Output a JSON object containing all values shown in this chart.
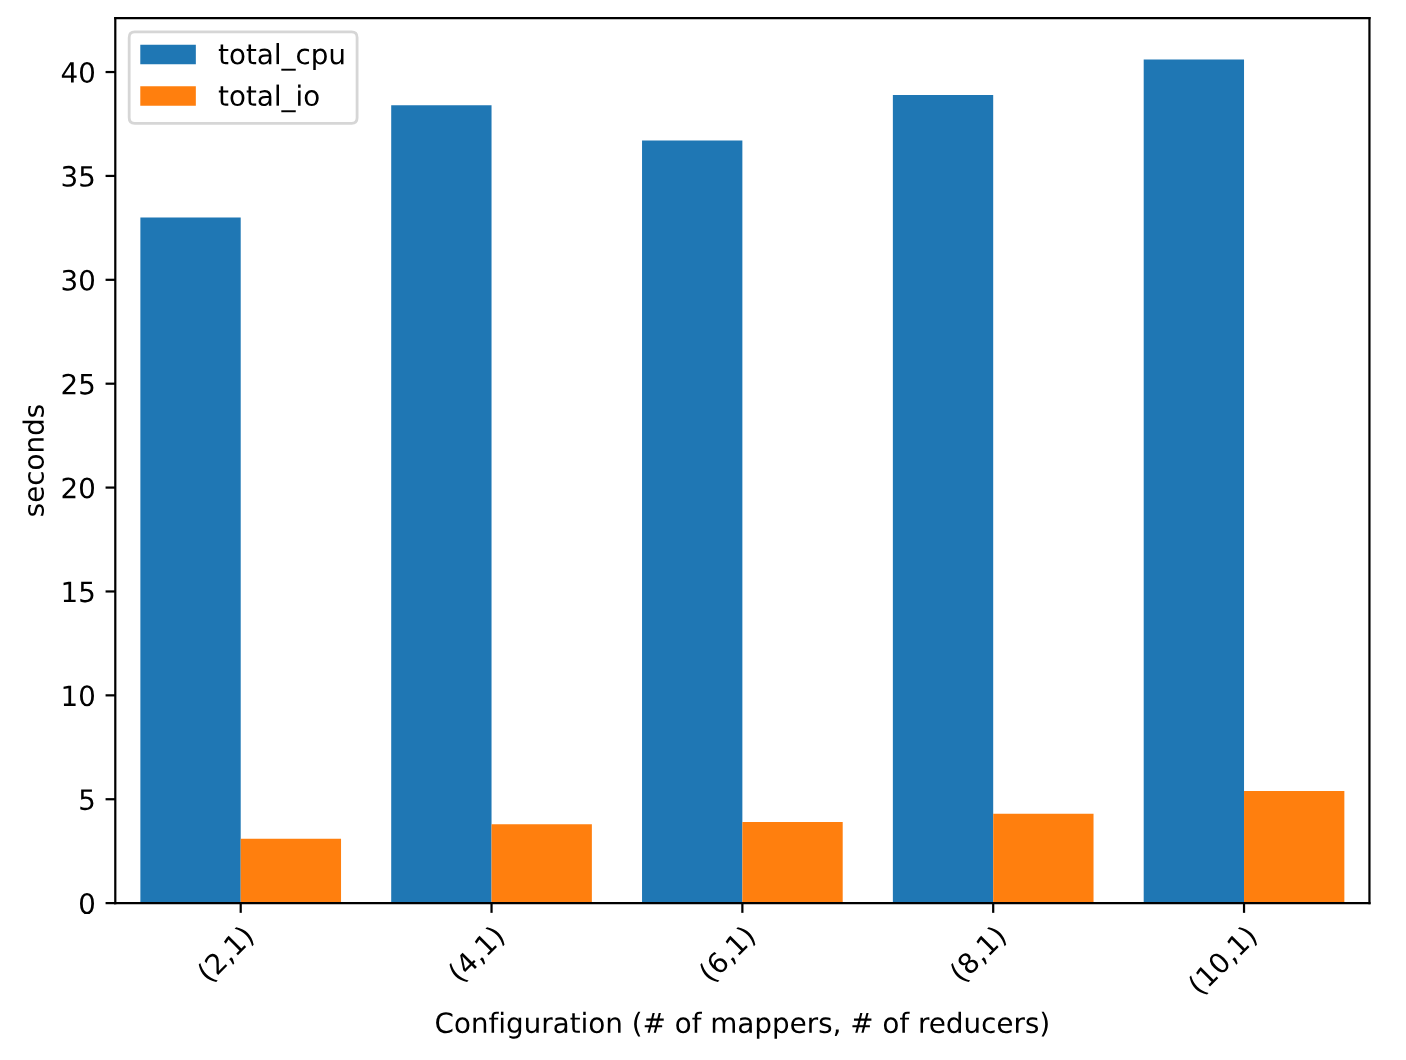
{
  "chart_data": {
    "type": "bar",
    "xlabel": "Configuration (# of mappers, # of reducers)",
    "ylabel": "seconds",
    "categories": [
      "(2,1)",
      "(4,1)",
      "(6,1)",
      "(8,1)",
      "(10,1)"
    ],
    "series": [
      {
        "name": "total_cpu",
        "color": "#1f77b4",
        "values": [
          33.0,
          38.4,
          36.7,
          38.9,
          40.6
        ]
      },
      {
        "name": "total_io",
        "color": "#ff7f0e",
        "values": [
          3.1,
          3.8,
          3.9,
          4.3,
          5.4
        ]
      }
    ],
    "ylim": [
      0,
      42.6
    ],
    "yticks": [
      0,
      5,
      10,
      15,
      20,
      25,
      30,
      35,
      40
    ],
    "legend": "top left",
    "grid": false
  }
}
